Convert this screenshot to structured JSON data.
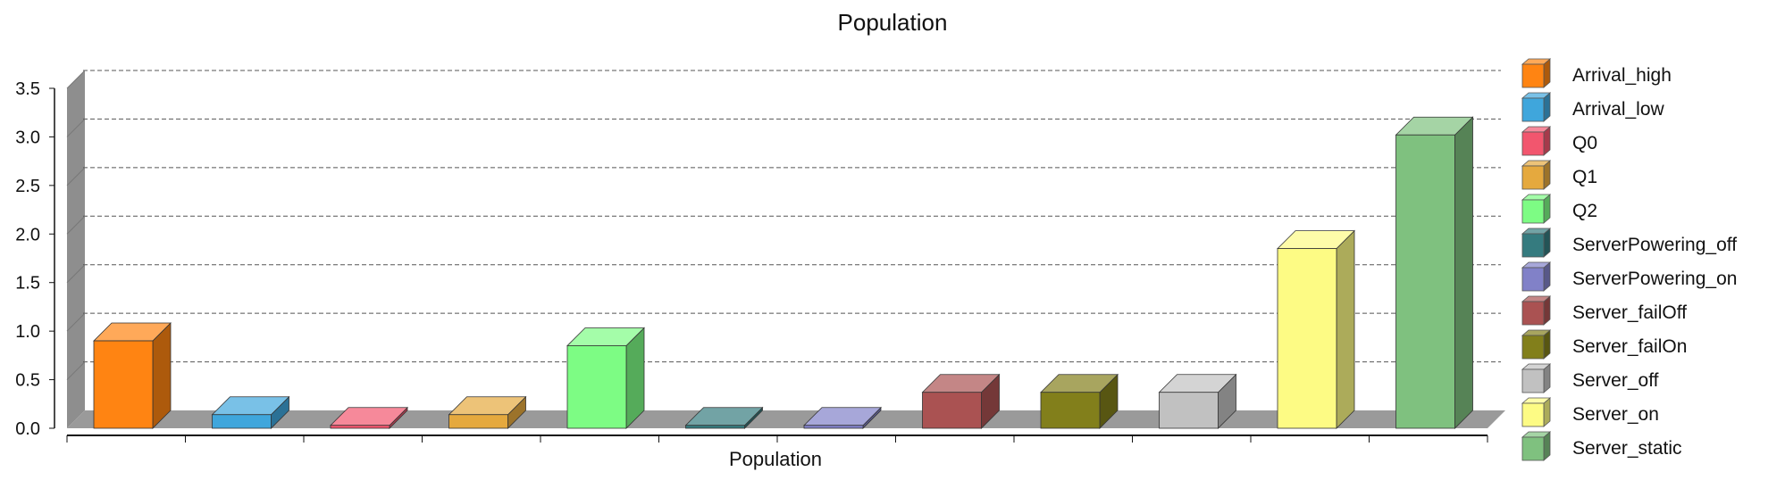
{
  "chart_data": {
    "type": "bar",
    "title": "Population",
    "xlabel": "Population",
    "ylabel": "",
    "ylim": [
      0,
      3.5
    ],
    "yticks": [
      "0.0",
      "0.5",
      "1.0",
      "1.5",
      "2.0",
      "2.5",
      "3.0",
      "3.5"
    ],
    "grid": true,
    "legend_position": "right",
    "three_d": true,
    "series": [
      {
        "name": "Arrival_high",
        "value": 0.9,
        "color": "#ff8412"
      },
      {
        "name": "Arrival_low",
        "value": 0.14,
        "color": "#3fa6dc"
      },
      {
        "name": "Q0",
        "value": 0.03,
        "color": "#f2566e"
      },
      {
        "name": "Q1",
        "value": 0.14,
        "color": "#e5a93e"
      },
      {
        "name": "Q2",
        "value": 0.85,
        "color": "#7dfc84"
      },
      {
        "name": "ServerPowering_off",
        "value": 0.03,
        "color": "#357b7f"
      },
      {
        "name": "ServerPowering_on",
        "value": 0.03,
        "color": "#8181c8"
      },
      {
        "name": "Server_failOff",
        "value": 0.37,
        "color": "#aa5252"
      },
      {
        "name": "Server_failOn",
        "value": 0.37,
        "color": "#827f1b"
      },
      {
        "name": "Server_off",
        "value": 0.37,
        "color": "#c1c1c1"
      },
      {
        "name": "Server_on",
        "value": 1.85,
        "color": "#fdfb84"
      },
      {
        "name": "Server_static",
        "value": 3.02,
        "color": "#7fc17f"
      }
    ]
  }
}
